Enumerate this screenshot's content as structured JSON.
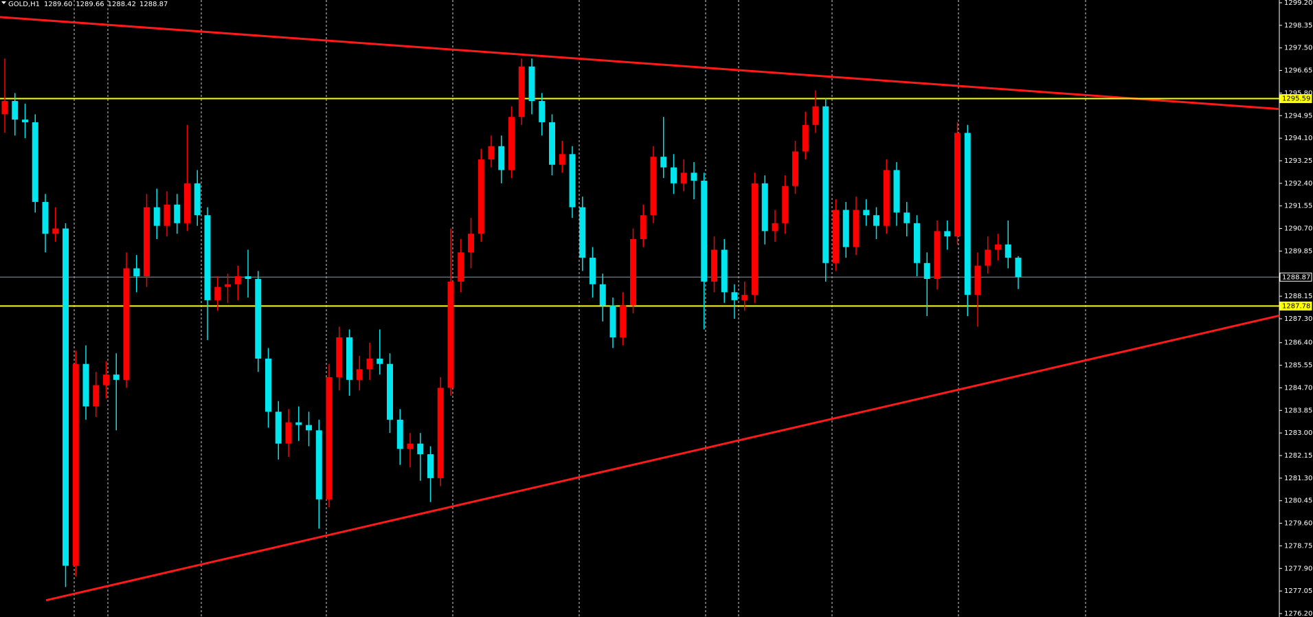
{
  "chart_data": {
    "type": "candlestick",
    "title": "GOLD,H1",
    "title_values": [
      {
        "value": 1289.6,
        "label": "1289.60"
      },
      {
        "value": 1289.66,
        "label": "1289.66"
      },
      {
        "value": 1288.42,
        "label": "1288.42"
      },
      {
        "value": 1288.87,
        "label": "1288.87"
      }
    ],
    "up_color": "#ff0000",
    "down_color": "#00e5ee",
    "open": [
      1295.0,
      1295.5,
      1294.8,
      1294.7,
      1291.7,
      1290.5,
      1290.7,
      1278.0,
      1285.6,
      1284.0,
      1284.8,
      1285.2,
      1285.0,
      1289.2,
      1288.9,
      1291.5,
      1290.8,
      1291.6,
      1290.9,
      1292.4,
      1291.2,
      1288.0,
      1288.5,
      1288.6,
      1288.9,
      1288.8,
      1285.8,
      1283.8,
      1282.6,
      1283.4,
      1283.3,
      1283.1,
      1280.5,
      1285.1,
      1286.6,
      1285.0,
      1285.4,
      1285.8,
      1285.6,
      1283.5,
      1282.4,
      1282.6,
      1282.2,
      1281.3,
      1284.7,
      1288.7,
      1289.8,
      1290.5,
      1293.3,
      1293.8,
      1292.9,
      1294.9,
      1296.8,
      1295.5,
      1294.7,
      1293.1,
      1293.5,
      1291.5,
      1289.6,
      1288.6,
      1287.8,
      1286.6,
      1287.8,
      1290.3,
      1291.2,
      1293.4,
      1293.0,
      1292.4,
      1292.8,
      1292.5,
      1288.7,
      1289.9,
      1288.3,
      1288.0,
      1288.2,
      1292.4,
      1290.6,
      1290.9,
      1292.3,
      1293.6,
      1294.6,
      1295.3,
      1289.4,
      1291.4,
      1290.0,
      1291.4,
      1291.2,
      1290.8,
      1292.9,
      1291.3,
      1290.9,
      1289.4,
      1288.8,
      1290.6,
      1290.4,
      1294.3,
      1288.2,
      1289.3,
      1289.9,
      1290.1,
      1289.6
    ],
    "high": [
      1297.1,
      1295.8,
      1295.4,
      1295.0,
      1292.0,
      1291.5,
      1290.9,
      1286.1,
      1286.3,
      1285.3,
      1285.7,
      1286.0,
      1289.8,
      1289.7,
      1292.0,
      1292.2,
      1292.1,
      1292.0,
      1294.6,
      1292.9,
      1291.5,
      1288.9,
      1289.0,
      1289.3,
      1289.9,
      1289.1,
      1286.2,
      1284.2,
      1283.9,
      1284.0,
      1283.8,
      1283.5,
      1285.6,
      1287.0,
      1286.9,
      1285.9,
      1286.4,
      1286.9,
      1286.0,
      1283.9,
      1283.0,
      1283.0,
      1282.5,
      1285.1,
      1290.7,
      1290.3,
      1291.1,
      1293.7,
      1294.2,
      1294.2,
      1295.3,
      1297.1,
      1297.1,
      1295.8,
      1295.0,
      1294.0,
      1293.8,
      1291.9,
      1290.0,
      1289.0,
      1288.1,
      1288.3,
      1290.7,
      1291.6,
      1293.8,
      1294.9,
      1293.5,
      1293.3,
      1293.2,
      1292.8,
      1290.4,
      1290.3,
      1288.6,
      1288.7,
      1292.8,
      1292.7,
      1291.4,
      1292.7,
      1294.0,
      1295.1,
      1295.9,
      1295.6,
      1291.8,
      1291.7,
      1291.9,
      1291.8,
      1291.5,
      1293.3,
      1293.2,
      1291.7,
      1291.2,
      1289.8,
      1291.0,
      1291.0,
      1294.7,
      1294.6,
      1289.8,
      1290.4,
      1290.5,
      1291.0,
      1289.66
    ],
    "low": [
      1294.3,
      1294.2,
      1294.1,
      1291.3,
      1289.8,
      1290.2,
      1277.2,
      1277.6,
      1283.5,
      1283.6,
      1284.3,
      1283.1,
      1284.7,
      1288.3,
      1288.5,
      1290.3,
      1290.4,
      1290.5,
      1290.6,
      1290.8,
      1286.5,
      1287.6,
      1287.9,
      1288.0,
      1288.1,
      1285.3,
      1283.2,
      1282.0,
      1282.1,
      1282.7,
      1282.5,
      1279.4,
      1280.2,
      1284.6,
      1284.4,
      1284.6,
      1285.0,
      1285.2,
      1283.0,
      1281.8,
      1281.7,
      1281.2,
      1280.4,
      1281.0,
      1284.4,
      1288.3,
      1289.2,
      1290.2,
      1293.0,
      1292.4,
      1292.6,
      1294.6,
      1295.0,
      1294.2,
      1292.7,
      1292.8,
      1291.1,
      1289.1,
      1288.1,
      1287.2,
      1286.2,
      1286.3,
      1287.5,
      1290.0,
      1290.9,
      1292.6,
      1292.0,
      1292.1,
      1291.8,
      1286.9,
      1288.3,
      1287.9,
      1287.3,
      1287.6,
      1287.9,
      1290.1,
      1290.2,
      1290.5,
      1292.0,
      1293.3,
      1294.3,
      1288.7,
      1289.1,
      1289.6,
      1289.7,
      1290.8,
      1290.3,
      1290.5,
      1290.8,
      1290.4,
      1288.9,
      1287.4,
      1288.4,
      1289.9,
      1290.1,
      1287.4,
      1287.0,
      1289.0,
      1289.5,
      1289.2,
      1288.42
    ],
    "close": [
      1295.5,
      1294.8,
      1294.7,
      1291.7,
      1290.5,
      1290.7,
      1278.0,
      1285.6,
      1284.0,
      1284.8,
      1285.2,
      1285.0,
      1289.2,
      1288.9,
      1291.5,
      1290.8,
      1291.6,
      1290.9,
      1292.4,
      1291.2,
      1288.0,
      1288.5,
      1288.6,
      1288.9,
      1288.8,
      1285.8,
      1283.8,
      1282.6,
      1283.4,
      1283.3,
      1283.1,
      1280.5,
      1285.1,
      1286.6,
      1285.0,
      1285.4,
      1285.8,
      1285.6,
      1283.5,
      1282.4,
      1282.6,
      1282.2,
      1281.3,
      1284.7,
      1288.7,
      1289.8,
      1290.5,
      1293.3,
      1293.8,
      1292.9,
      1294.9,
      1296.8,
      1295.5,
      1294.7,
      1293.1,
      1293.5,
      1291.5,
      1289.6,
      1288.6,
      1287.8,
      1286.6,
      1287.8,
      1290.3,
      1291.2,
      1293.4,
      1293.0,
      1292.4,
      1292.8,
      1292.5,
      1288.7,
      1289.9,
      1288.3,
      1288.0,
      1288.2,
      1292.4,
      1290.6,
      1290.9,
      1292.3,
      1293.6,
      1294.6,
      1295.3,
      1289.4,
      1291.4,
      1290.0,
      1291.4,
      1291.2,
      1290.8,
      1292.9,
      1291.3,
      1290.9,
      1289.4,
      1288.8,
      1290.6,
      1290.4,
      1294.3,
      1288.2,
      1289.3,
      1289.9,
      1290.1,
      1289.6,
      1288.87
    ],
    "ylim": [
      1276.2,
      1299.2
    ],
    "yticks": [
      {
        "value": 1299.2,
        "label": "1299.20"
      },
      {
        "value": 1298.35,
        "label": "1298.35"
      },
      {
        "value": 1297.5,
        "label": "1297.50"
      },
      {
        "value": 1296.65,
        "label": "1296.65"
      },
      {
        "value": 1295.8,
        "label": "1295.80"
      },
      {
        "value": 1294.95,
        "label": "1294.95"
      },
      {
        "value": 1294.1,
        "label": "1294.10"
      },
      {
        "value": 1293.25,
        "label": "1293.25"
      },
      {
        "value": 1292.4,
        "label": "1292.40"
      },
      {
        "value": 1291.55,
        "label": "1291.55"
      },
      {
        "value": 1290.7,
        "label": "1290.70"
      },
      {
        "value": 1289.85,
        "label": "1289.85"
      },
      {
        "value": 1288.15,
        "label": "1288.15"
      },
      {
        "value": 1287.3,
        "label": "1287.30"
      },
      {
        "value": 1286.4,
        "label": "1286.40"
      },
      {
        "value": 1285.55,
        "label": "1285.55"
      },
      {
        "value": 1284.7,
        "label": "1284.70"
      },
      {
        "value": 1283.85,
        "label": "1283.85"
      },
      {
        "value": 1283.0,
        "label": "1283.00"
      },
      {
        "value": 1282.15,
        "label": "1282.15"
      },
      {
        "value": 1281.3,
        "label": "1281.30"
      },
      {
        "value": 1280.45,
        "label": "1280.45"
      },
      {
        "value": 1279.6,
        "label": "1279.60"
      },
      {
        "value": 1278.75,
        "label": "1278.75"
      },
      {
        "value": 1277.9,
        "label": "1277.90"
      },
      {
        "value": 1277.05,
        "label": "1277.05"
      },
      {
        "value": 1276.2,
        "label": "1276.20"
      }
    ],
    "hlines": [
      {
        "value": 1295.59,
        "label": "1295.59",
        "color": "#ffff00"
      },
      {
        "value": 1287.78,
        "label": "1287.78",
        "color": "#ffff00"
      }
    ],
    "bid": {
      "value": 1288.87,
      "label": "1288.87",
      "color": "#8c9aa6"
    },
    "trendlines": [
      {
        "start": 1298.66,
        "end": 1295.2,
        "color": "#ff1a1a"
      },
      {
        "start": 1276.7,
        "end": 1287.42,
        "color": "#ff1a1a"
      }
    ]
  }
}
